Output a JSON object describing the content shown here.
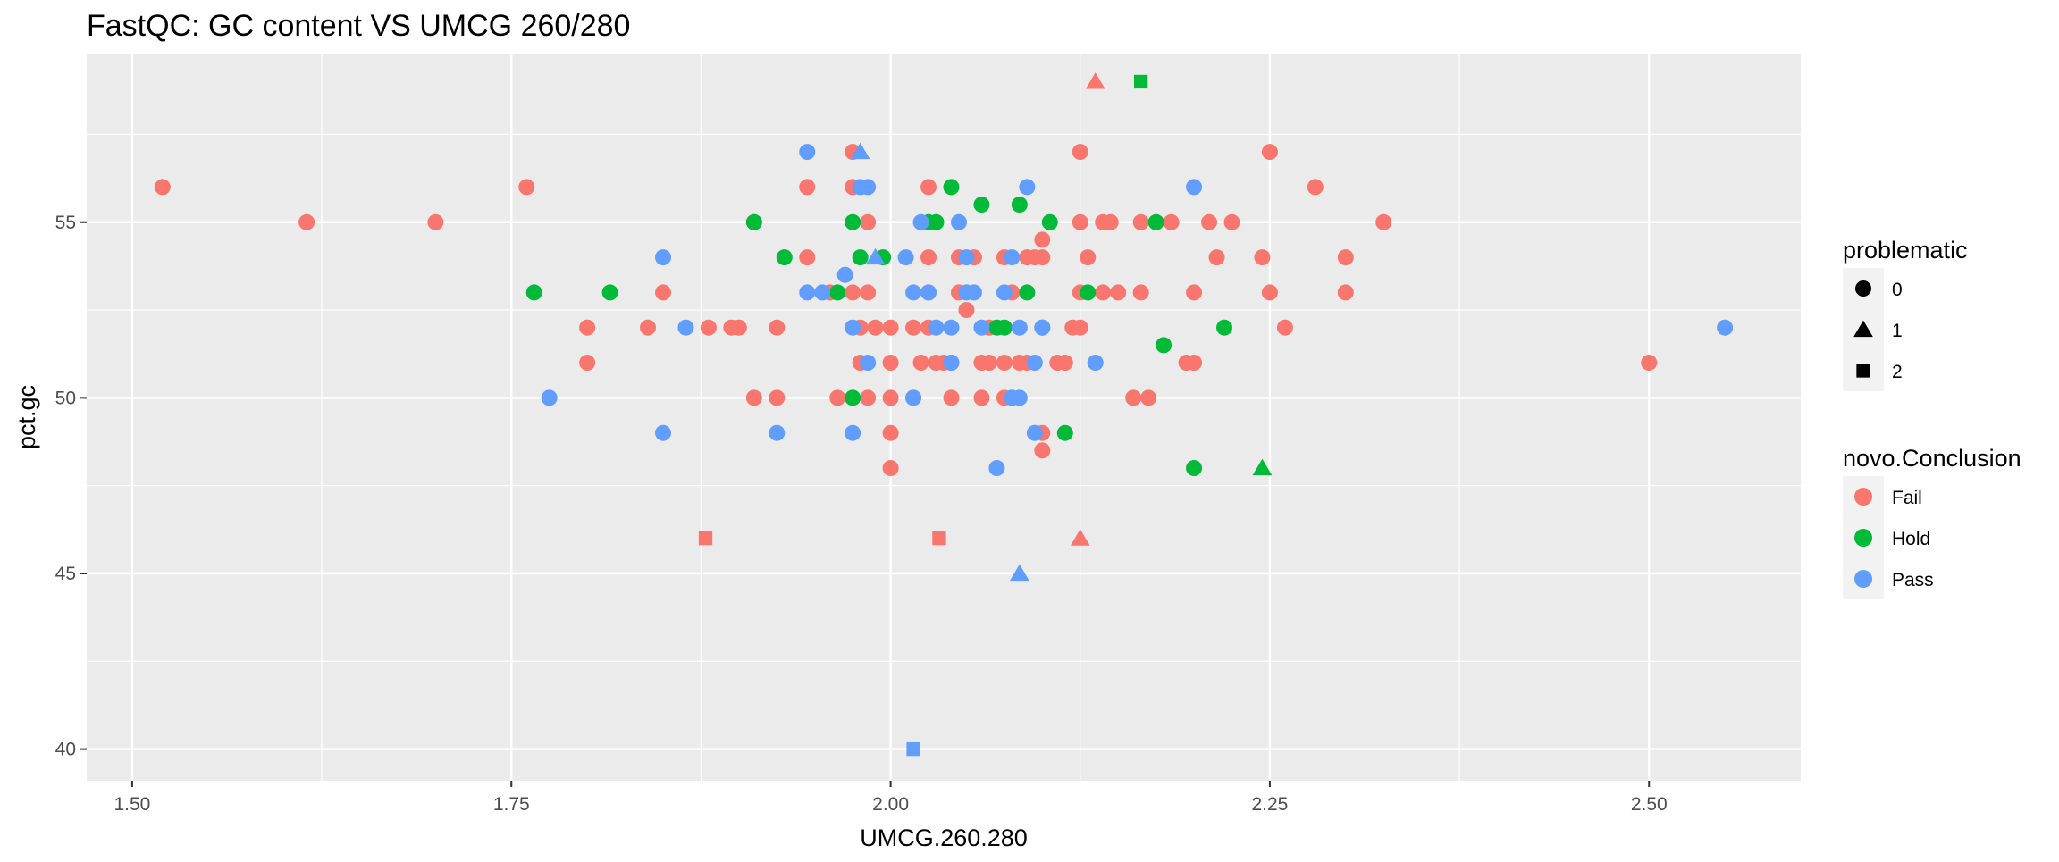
{
  "chart_data": {
    "type": "scatter",
    "title": "FastQC: GC content VS UMCG 260/280",
    "xlabel": "UMCG.260.280",
    "ylabel": "pct.gc",
    "xlim": [
      1.47,
      2.6
    ],
    "ylim": [
      39.1,
      59.8
    ],
    "x_ticks": [
      1.5,
      1.75,
      2.0,
      2.25,
      2.5
    ],
    "x_tick_labels": [
      "1.50",
      "1.75",
      "2.00",
      "2.25",
      "2.50"
    ],
    "y_ticks": [
      40,
      45,
      50,
      55
    ],
    "y_tick_labels": [
      "40",
      "45",
      "50",
      "55"
    ],
    "grid": true,
    "legend_position": "right",
    "legends": {
      "shape": {
        "title": "problematic",
        "entries": [
          {
            "key": "0",
            "label": "0",
            "shape": "circle"
          },
          {
            "key": "1",
            "label": "1",
            "shape": "triangle"
          },
          {
            "key": "2",
            "label": "2",
            "shape": "square"
          }
        ]
      },
      "color": {
        "title": "novo.Conclusion",
        "entries": [
          {
            "key": "Fail",
            "label": "Fail",
            "color": "#F8766D"
          },
          {
            "key": "Hold",
            "label": "Hold",
            "color": "#00BA38"
          },
          {
            "key": "Pass",
            "label": "Pass",
            "color": "#619CFF"
          }
        ]
      }
    },
    "series": [
      {
        "name": "Fail",
        "color": "#F8766D",
        "points": [
          [
            1.52,
            56,
            0
          ],
          [
            1.615,
            55,
            0
          ],
          [
            1.7,
            55,
            0
          ],
          [
            1.76,
            56,
            0
          ],
          [
            1.8,
            52,
            0
          ],
          [
            1.8,
            51,
            0
          ],
          [
            1.84,
            52,
            0
          ],
          [
            1.85,
            53,
            0
          ],
          [
            1.88,
            52,
            0
          ],
          [
            1.895,
            52,
            0
          ],
          [
            1.9,
            52,
            0
          ],
          [
            1.91,
            55,
            0
          ],
          [
            1.91,
            50,
            0
          ],
          [
            1.925,
            52,
            0
          ],
          [
            1.925,
            50,
            0
          ],
          [
            1.945,
            56,
            0
          ],
          [
            1.945,
            54,
            0
          ],
          [
            1.96,
            53,
            0
          ],
          [
            1.965,
            50,
            0
          ],
          [
            1.975,
            57,
            0
          ],
          [
            1.975,
            56,
            0
          ],
          [
            1.975,
            53,
            0
          ],
          [
            1.98,
            52,
            0
          ],
          [
            1.98,
            51,
            0
          ],
          [
            1.985,
            55,
            0
          ],
          [
            1.985,
            53,
            0
          ],
          [
            1.985,
            50,
            0
          ],
          [
            1.99,
            52,
            0
          ],
          [
            2.0,
            52,
            0
          ],
          [
            2.0,
            51,
            0
          ],
          [
            2.0,
            50,
            0
          ],
          [
            2.0,
            49,
            0
          ],
          [
            2.0,
            48,
            0
          ],
          [
            2.015,
            52,
            0
          ],
          [
            2.015,
            50,
            0
          ],
          [
            2.02,
            51,
            0
          ],
          [
            2.025,
            56,
            0
          ],
          [
            2.025,
            54,
            0
          ],
          [
            2.025,
            53,
            0
          ],
          [
            2.025,
            52,
            0
          ],
          [
            2.03,
            51,
            0
          ],
          [
            2.035,
            51,
            0
          ],
          [
            2.04,
            51,
            0
          ],
          [
            2.04,
            50,
            0
          ],
          [
            2.045,
            54,
            0
          ],
          [
            2.045,
            53,
            0
          ],
          [
            2.05,
            52.5,
            0
          ],
          [
            2.055,
            54,
            0
          ],
          [
            2.06,
            51,
            0
          ],
          [
            2.06,
            50,
            0
          ],
          [
            2.065,
            52,
            0
          ],
          [
            2.065,
            51,
            0
          ],
          [
            2.075,
            54,
            0
          ],
          [
            2.075,
            51,
            0
          ],
          [
            2.075,
            50,
            0
          ],
          [
            2.08,
            53,
            0
          ],
          [
            2.08,
            50,
            0
          ],
          [
            2.085,
            51,
            0
          ],
          [
            2.09,
            54,
            0
          ],
          [
            2.09,
            51,
            0
          ],
          [
            2.095,
            54,
            0
          ],
          [
            2.1,
            54.5,
            0
          ],
          [
            2.1,
            54,
            0
          ],
          [
            2.1,
            49,
            0
          ],
          [
            2.1,
            48.5,
            0
          ],
          [
            2.11,
            51,
            0
          ],
          [
            2.115,
            51,
            0
          ],
          [
            2.12,
            52,
            0
          ],
          [
            2.125,
            57,
            0
          ],
          [
            2.125,
            55,
            0
          ],
          [
            2.125,
            53,
            0
          ],
          [
            2.125,
            52,
            0
          ],
          [
            2.13,
            54,
            0
          ],
          [
            2.14,
            55,
            0
          ],
          [
            2.14,
            53,
            0
          ],
          [
            2.145,
            55,
            0
          ],
          [
            2.15,
            53,
            0
          ],
          [
            2.16,
            50,
            0
          ],
          [
            2.165,
            55,
            0
          ],
          [
            2.165,
            53,
            0
          ],
          [
            2.17,
            50,
            0
          ],
          [
            2.185,
            55,
            0
          ],
          [
            2.195,
            51,
            0
          ],
          [
            2.2,
            51,
            0
          ],
          [
            2.2,
            53,
            0
          ],
          [
            2.21,
            55,
            0
          ],
          [
            2.215,
            54,
            0
          ],
          [
            2.225,
            55,
            0
          ],
          [
            2.245,
            54,
            0
          ],
          [
            2.25,
            57,
            0
          ],
          [
            2.25,
            53,
            0
          ],
          [
            2.26,
            52,
            0
          ],
          [
            2.28,
            56,
            0
          ],
          [
            2.3,
            54,
            0
          ],
          [
            2.3,
            53,
            0
          ],
          [
            2.325,
            55,
            0
          ],
          [
            2.5,
            51,
            0
          ],
          [
            2.135,
            59,
            1
          ],
          [
            2.125,
            46,
            1
          ],
          [
            1.878,
            46,
            2
          ],
          [
            2.032,
            46,
            2
          ]
        ]
      },
      {
        "name": "Hold",
        "color": "#00BA38",
        "points": [
          [
            1.765,
            53,
            0
          ],
          [
            1.815,
            53,
            0
          ],
          [
            1.91,
            55,
            0
          ],
          [
            1.93,
            54,
            0
          ],
          [
            1.965,
            53,
            0
          ],
          [
            1.975,
            55,
            0
          ],
          [
            1.98,
            54,
            0
          ],
          [
            1.975,
            50,
            0
          ],
          [
            1.995,
            54,
            0
          ],
          [
            2.025,
            55,
            0
          ],
          [
            2.03,
            55,
            0
          ],
          [
            2.04,
            56,
            0
          ],
          [
            2.06,
            55.5,
            0
          ],
          [
            2.07,
            52,
            0
          ],
          [
            2.075,
            52,
            0
          ],
          [
            2.085,
            55.5,
            0
          ],
          [
            2.09,
            53,
            0
          ],
          [
            2.1,
            52,
            0
          ],
          [
            2.105,
            55,
            0
          ],
          [
            2.115,
            49,
            0
          ],
          [
            2.13,
            53,
            0
          ],
          [
            2.175,
            55,
            0
          ],
          [
            2.18,
            51.5,
            0
          ],
          [
            2.2,
            48,
            0
          ],
          [
            2.22,
            52,
            0
          ],
          [
            2.245,
            48,
            1
          ],
          [
            2.165,
            59,
            2
          ]
        ]
      },
      {
        "name": "Pass",
        "color": "#619CFF",
        "points": [
          [
            1.775,
            50,
            0
          ],
          [
            1.85,
            54,
            0
          ],
          [
            1.85,
            49,
            0
          ],
          [
            1.865,
            52,
            0
          ],
          [
            1.925,
            49,
            0
          ],
          [
            1.945,
            57,
            0
          ],
          [
            1.945,
            53,
            0
          ],
          [
            1.955,
            53,
            0
          ],
          [
            1.97,
            53.5,
            0
          ],
          [
            1.975,
            49,
            0
          ],
          [
            1.975,
            52,
            0
          ],
          [
            1.98,
            56,
            0
          ],
          [
            1.985,
            51,
            0
          ],
          [
            1.985,
            56,
            0
          ],
          [
            2.01,
            54,
            0
          ],
          [
            2.015,
            53,
            0
          ],
          [
            2.015,
            50,
            0
          ],
          [
            2.02,
            55,
            0
          ],
          [
            2.025,
            53,
            0
          ],
          [
            2.03,
            52,
            0
          ],
          [
            2.04,
            52,
            0
          ],
          [
            2.04,
            51,
            0
          ],
          [
            2.045,
            55,
            0
          ],
          [
            2.05,
            54,
            0
          ],
          [
            2.05,
            53,
            0
          ],
          [
            2.055,
            53,
            0
          ],
          [
            2.06,
            52,
            0
          ],
          [
            2.07,
            48,
            0
          ],
          [
            2.075,
            53,
            0
          ],
          [
            2.08,
            54,
            0
          ],
          [
            2.08,
            50,
            0
          ],
          [
            2.085,
            52,
            0
          ],
          [
            2.085,
            50,
            0
          ],
          [
            2.09,
            56,
            0
          ],
          [
            2.095,
            51,
            0
          ],
          [
            2.095,
            49,
            0
          ],
          [
            2.1,
            52,
            0
          ],
          [
            2.135,
            51,
            0
          ],
          [
            2.2,
            56,
            0
          ],
          [
            2.55,
            52,
            0
          ],
          [
            1.98,
            57,
            1
          ],
          [
            1.99,
            54,
            1
          ],
          [
            2.085,
            45,
            1
          ],
          [
            2.015,
            40,
            2
          ]
        ]
      }
    ]
  }
}
